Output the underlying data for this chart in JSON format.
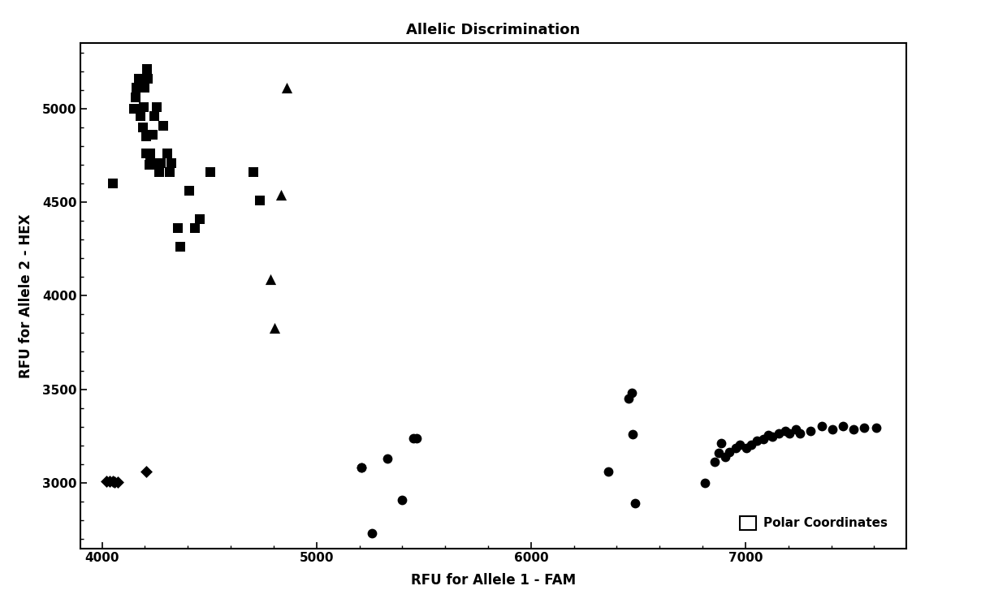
{
  "title": "Allelic Discrimination",
  "xlabel": "RFU for Allele 1 - FAM",
  "ylabel": "RFU for Allele 2 - HEX",
  "xlim": [
    3900,
    7750
  ],
  "ylim": [
    2650,
    5350
  ],
  "xticks": [
    4000,
    5000,
    6000,
    7000
  ],
  "yticks": [
    3000,
    3500,
    4000,
    4500,
    5000
  ],
  "legend_label": "Polar Coordinates",
  "squares": [
    [
      4050,
      4600
    ],
    [
      4150,
      5000
    ],
    [
      4155,
      5060
    ],
    [
      4160,
      5110
    ],
    [
      4170,
      5160
    ],
    [
      4180,
      4960
    ],
    [
      4190,
      4900
    ],
    [
      4195,
      5010
    ],
    [
      4200,
      5110
    ],
    [
      4205,
      4850
    ],
    [
      4205,
      4760
    ],
    [
      4210,
      5210
    ],
    [
      4215,
      5160
    ],
    [
      4215,
      4860
    ],
    [
      4220,
      4700
    ],
    [
      4225,
      4710
    ],
    [
      4225,
      4760
    ],
    [
      4235,
      4710
    ],
    [
      4235,
      4860
    ],
    [
      4245,
      4960
    ],
    [
      4255,
      5010
    ],
    [
      4265,
      4660
    ],
    [
      4275,
      4710
    ],
    [
      4285,
      4910
    ],
    [
      4305,
      4760
    ],
    [
      4315,
      4660
    ],
    [
      4325,
      4710
    ],
    [
      4355,
      4360
    ],
    [
      4365,
      4260
    ],
    [
      4405,
      4560
    ],
    [
      4435,
      4360
    ],
    [
      4455,
      4410
    ],
    [
      4505,
      4660
    ],
    [
      4705,
      4660
    ],
    [
      4735,
      4510
    ]
  ],
  "triangles": [
    [
      4860,
      5110
    ],
    [
      4835,
      4540
    ],
    [
      4785,
      4090
    ],
    [
      4805,
      3830
    ]
  ],
  "circles": [
    [
      5210,
      3080
    ],
    [
      5260,
      2730
    ],
    [
      5400,
      2910
    ],
    [
      5450,
      3240
    ],
    [
      5465,
      3240
    ],
    [
      5330,
      3130
    ],
    [
      5210,
      3080
    ],
    [
      6360,
      3060
    ],
    [
      6455,
      3450
    ],
    [
      6470,
      3480
    ],
    [
      6475,
      3260
    ],
    [
      6485,
      2890
    ],
    [
      6810,
      3000
    ],
    [
      6855,
      3110
    ],
    [
      6875,
      3160
    ],
    [
      6885,
      3210
    ],
    [
      6905,
      3140
    ],
    [
      6925,
      3165
    ],
    [
      6955,
      3185
    ],
    [
      6975,
      3205
    ],
    [
      7005,
      3185
    ],
    [
      7025,
      3205
    ],
    [
      7055,
      3225
    ],
    [
      7085,
      3235
    ],
    [
      7105,
      3255
    ],
    [
      7125,
      3245
    ],
    [
      7155,
      3265
    ],
    [
      7185,
      3275
    ],
    [
      7205,
      3265
    ],
    [
      7235,
      3285
    ],
    [
      7255,
      3265
    ],
    [
      7305,
      3275
    ],
    [
      7355,
      3305
    ],
    [
      7405,
      3285
    ],
    [
      7455,
      3305
    ],
    [
      7505,
      3285
    ],
    [
      7555,
      3295
    ],
    [
      7610,
      3295
    ]
  ],
  "diamonds": [
    [
      4020,
      3010
    ],
    [
      4035,
      3010
    ],
    [
      4050,
      3010
    ],
    [
      4060,
      3005
    ],
    [
      4072,
      3005
    ],
    [
      4205,
      3062
    ]
  ],
  "marker_color": "#000000",
  "background_color": "#ffffff",
  "title_fontsize": 13,
  "label_fontsize": 12,
  "tick_labelsize": 11,
  "marker_size": 72,
  "triangle_size": 90
}
